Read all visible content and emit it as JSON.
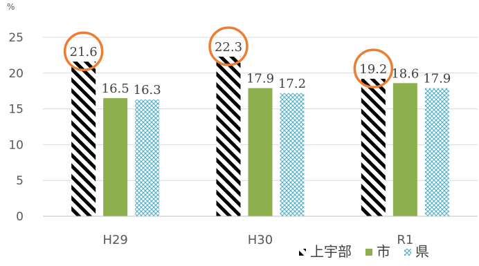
{
  "chart_data": {
    "type": "bar",
    "unit_label": "%",
    "categories": [
      "H29",
      "H30",
      "R1"
    ],
    "category_labels": [
      "H29",
      "H30",
      "R1"
    ],
    "series": [
      {
        "name": "上宇部",
        "values": [
          21.6,
          22.3,
          19.2
        ],
        "color": "#000000",
        "pattern": "diagonal-stripes"
      },
      {
        "name": "市",
        "values": [
          16.5,
          17.9,
          18.6
        ],
        "color": "#8DB04F",
        "pattern": "solid"
      },
      {
        "name": "県",
        "values": [
          16.3,
          17.2,
          17.9
        ],
        "color": "#4BACC6",
        "pattern": "crosshatch"
      }
    ],
    "ylim": [
      0,
      25
    ],
    "yticks": [
      0,
      5,
      10,
      15,
      20,
      25
    ],
    "grid": true,
    "legend_position": "bottom-right",
    "highlight": {
      "series": "上宇部",
      "style": "orange circle",
      "color": "#ED7D31"
    }
  }
}
